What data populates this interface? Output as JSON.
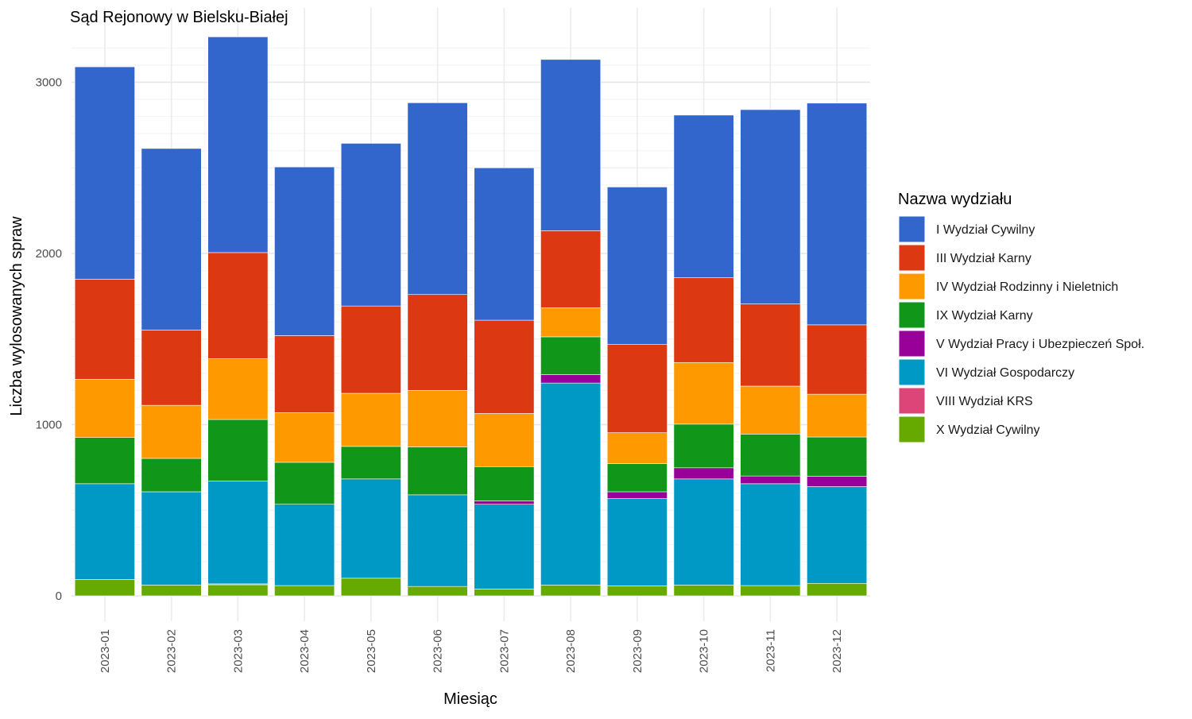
{
  "chart_data": {
    "type": "bar",
    "stacked": true,
    "title": "Sąd Rejonowy w Bielsku-Białej",
    "xlabel": "Miesiąc",
    "ylabel": "Liczba wylosowanych spraw",
    "ylim": [
      0,
      3380
    ],
    "yticks": [
      0,
      1000,
      2000,
      3000
    ],
    "yticks_labels": [
      "0",
      "1000",
      "2000",
      "3000"
    ],
    "grid": true,
    "legend_position": "right",
    "legend_title": "Nazwa wydziału",
    "categories": [
      "2023-01",
      "2023-02",
      "2023-03",
      "2023-04",
      "2023-05",
      "2023-06",
      "2023-07",
      "2023-08",
      "2023-09",
      "2023-10",
      "2023-11",
      "2023-12"
    ],
    "series": [
      {
        "name": "X Wydział Cywilny",
        "color": "#66AA00",
        "values": [
          95,
          63,
          65,
          60,
          103,
          55,
          40,
          63,
          58,
          63,
          60,
          73
        ]
      },
      {
        "name": "VIII Wydział KRS",
        "color": "#DD4477",
        "values": [
          0,
          0,
          5,
          0,
          0,
          0,
          0,
          0,
          0,
          0,
          0,
          0
        ]
      },
      {
        "name": "VI Wydział Gospodarczy",
        "color": "#0099C6",
        "values": [
          560,
          545,
          600,
          475,
          580,
          535,
          495,
          1180,
          510,
          620,
          595,
          565
        ]
      },
      {
        "name": "V Wydział Pracy i Ubezpieczeń Społ.",
        "color": "#990099",
        "values": [
          0,
          0,
          0,
          0,
          0,
          0,
          20,
          50,
          40,
          65,
          45,
          60
        ]
      },
      {
        "name": "IX Wydział Karny",
        "color": "#109618",
        "values": [
          270,
          195,
          360,
          245,
          190,
          280,
          200,
          220,
          165,
          255,
          245,
          230
        ]
      },
      {
        "name": "IV Wydział Rodzinny i Nieletnich",
        "color": "#FF9900",
        "values": [
          340,
          310,
          355,
          290,
          310,
          330,
          310,
          170,
          180,
          360,
          280,
          250
        ]
      },
      {
        "name": "III Wydział Karny",
        "color": "#DC3912",
        "values": [
          585,
          440,
          620,
          450,
          510,
          560,
          545,
          450,
          515,
          495,
          480,
          405
        ]
      },
      {
        "name": "I Wydział Cywilny",
        "color": "#3366CC",
        "values": [
          1240,
          1060,
          1260,
          985,
          950,
          1120,
          890,
          1000,
          920,
          950,
          1135,
          1295
        ]
      }
    ],
    "legend_order": [
      "I Wydział Cywilny",
      "III Wydział Karny",
      "IV Wydział Rodzinny i Nieletnich",
      "IX Wydział Karny",
      "V Wydział Pracy i Ubezpieczeń Społ.",
      "VI Wydział Gospodarczy",
      "VIII Wydział KRS",
      "X Wydział Cywilny"
    ]
  }
}
